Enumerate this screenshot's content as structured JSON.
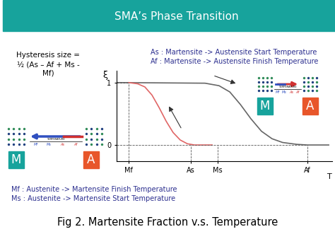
{
  "header": {
    "title": "SMA’s Phase Transition"
  },
  "hysteresis": {
    "lines": [
      "Hysteresis size =",
      "½ (As – Af + Ms -",
      "Mf)"
    ]
  },
  "legend_top": [
    "As : Martensite -> Austensite Start Temperature",
    "Af : Martensite -> Austensite Finish Temperature"
  ],
  "legend_bottom": [
    "Mf : Austenite -> Martensite Finish Temperature",
    "Ms : Austenite -> Martensite Start Temperature"
  ],
  "caption": "Fig 2. Martensite Fraction v.s. Temperature",
  "icons": {
    "martensite": "M",
    "austenite": "A",
    "scale_labels": [
      "Mf",
      "Ms",
      "As",
      "Af"
    ],
    "scale_title": "TEMPERATURE"
  },
  "chart_data": {
    "type": "line",
    "x_label": "T",
    "y_label": "ξ",
    "xlim": [
      0,
      10
    ],
    "ylim": [
      -0.26,
      1.19
    ],
    "xticks": [
      {
        "value": 0.56,
        "label": "Mf"
      },
      {
        "value": 3.44,
        "label": "As"
      },
      {
        "value": 4.69,
        "label": "Ms"
      },
      {
        "value": 8.85,
        "label": "Af"
      }
    ],
    "yticks": [
      0,
      1
    ],
    "series": [
      {
        "color": "#666666",
        "x": [
          0.0,
          4.1,
          4.75,
          5.25,
          5.74,
          6.23,
          6.72,
          7.21,
          7.7,
          8.36,
          8.85,
          9.84
        ],
        "values": [
          1.0,
          0.99,
          0.95,
          0.85,
          0.65,
          0.42,
          0.22,
          0.1,
          0.04,
          0.01,
          0.0,
          0.0
        ]
      },
      {
        "color": "#e06666",
        "x": [
          0.56,
          0.98,
          1.31,
          1.64,
          1.97,
          2.3,
          2.62,
          2.95,
          3.28,
          3.61,
          4.43
        ],
        "values": [
          1.0,
          0.98,
          0.93,
          0.8,
          0.6,
          0.38,
          0.2,
          0.08,
          0.02,
          0.0,
          0.0
        ]
      }
    ]
  }
}
